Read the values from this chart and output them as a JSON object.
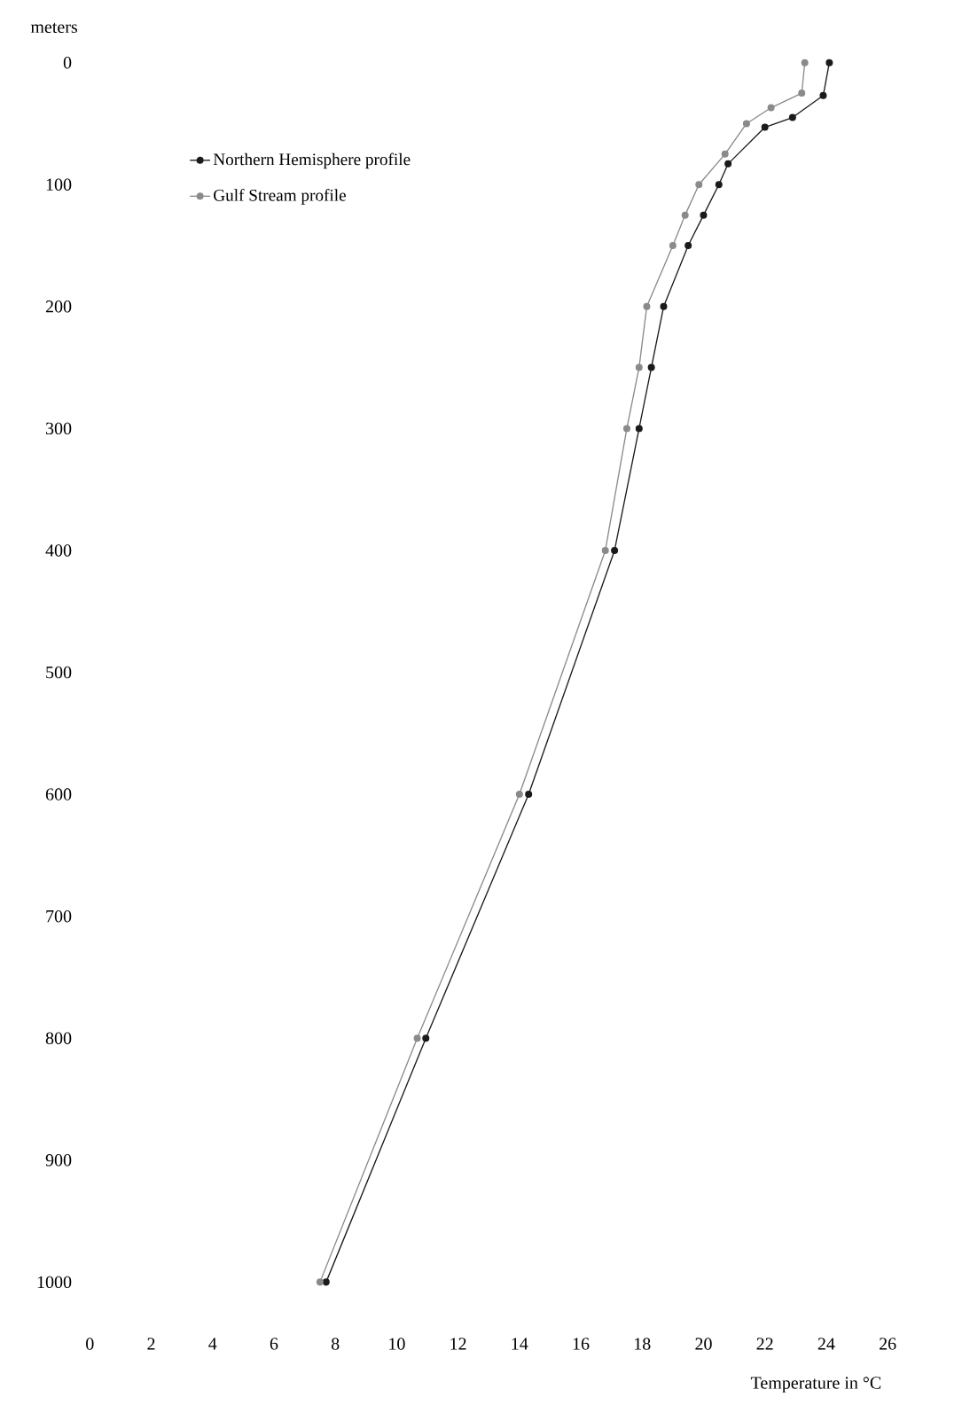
{
  "chart_data": {
    "type": "line",
    "xlabel": "Temperature in °C",
    "ylabel": "meters",
    "xlim": [
      0,
      26
    ],
    "ylim": [
      1000,
      0
    ],
    "xticks": [
      0,
      2,
      4,
      6,
      8,
      10,
      12,
      14,
      16,
      18,
      20,
      22,
      24,
      26
    ],
    "yticks": [
      0,
      100,
      200,
      300,
      400,
      500,
      600,
      700,
      800,
      900,
      1000
    ],
    "legend": "top left",
    "marker": "circle",
    "series": [
      {
        "name": "Northern Hemisphere profile",
        "color": "#1a1a1a",
        "x": [
          24.1,
          23.9,
          22.9,
          22.0,
          20.8,
          20.5,
          20.0,
          19.5,
          18.7,
          18.3,
          17.9,
          17.1,
          14.3,
          10.95,
          7.7
        ],
        "values": [
          0,
          27,
          45,
          53,
          83,
          100,
          125,
          150,
          200,
          250,
          300,
          400,
          600,
          800,
          1000
        ]
      },
      {
        "name": "Gulf Stream profile",
        "color": "#8a8a8a",
        "x": [
          23.3,
          23.2,
          22.2,
          21.4,
          20.7,
          19.85,
          19.4,
          19.0,
          18.15,
          17.9,
          17.5,
          16.8,
          14.0,
          10.67,
          7.5
        ],
        "values": [
          0,
          25,
          37,
          50,
          75,
          100,
          125,
          150,
          200,
          250,
          300,
          400,
          600,
          800,
          1000
        ]
      }
    ]
  }
}
